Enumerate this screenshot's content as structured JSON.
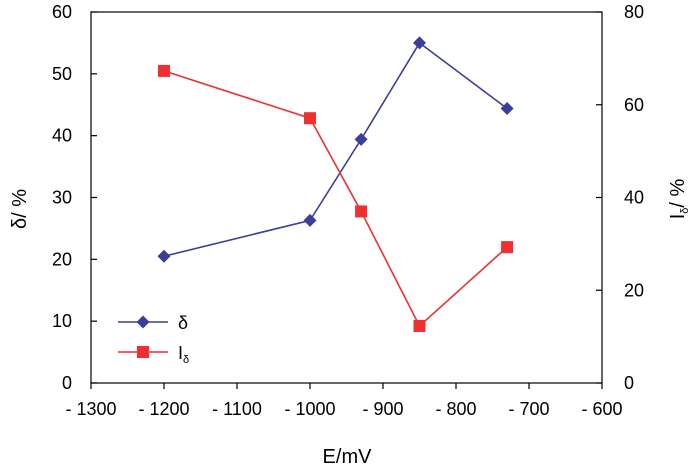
{
  "chart_data": {
    "type": "line",
    "xlabel": "E/mV",
    "ylabel_left": "δ/ %",
    "ylabel_right": {
      "main": "I",
      "sub": "δ",
      "suffix": "/ %"
    },
    "xlim": [
      -1300,
      -600
    ],
    "ylim_left": [
      0,
      60
    ],
    "ylim_right": [
      0,
      80
    ],
    "x_ticks": [
      -1300,
      -1200,
      -1100,
      -1000,
      -900,
      -800,
      -700,
      -600
    ],
    "x_tick_labels": [
      "- 1300",
      "- 1200",
      "- 1100",
      "- 1000",
      "- 900",
      "- 800",
      "- 700",
      "- 600"
    ],
    "y_left_ticks": [
      0,
      10,
      20,
      30,
      40,
      50,
      60
    ],
    "y_right_ticks": [
      0,
      20,
      40,
      60,
      80
    ],
    "grid": false,
    "legend_position": "bottom-left",
    "series": [
      {
        "name": "δ",
        "axis": "left",
        "color": "#3b3f9a",
        "marker": "diamond",
        "x": [
          -1200,
          -1000,
          -930,
          -850,
          -730
        ],
        "y": [
          20.5,
          26.3,
          39.4,
          55.0,
          44.4
        ]
      },
      {
        "name": "I",
        "name_sub": "δ",
        "axis": "right",
        "color": "#ee3030",
        "marker": "square",
        "x": [
          -1200,
          -1000,
          -930,
          -850,
          -730
        ],
        "y": [
          67.3,
          57.1,
          37.0,
          12.3,
          29.3
        ]
      }
    ]
  }
}
